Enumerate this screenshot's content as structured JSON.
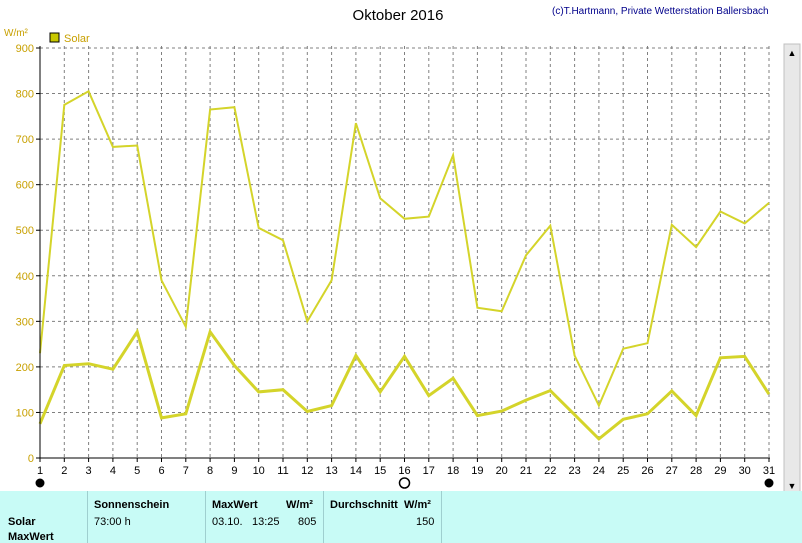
{
  "chart_data": {
    "type": "line",
    "title": "Oktober 2016",
    "credit": "(c)T.Hartmann, Private Wetterstation Ballersbach",
    "ylabel": "W/m²",
    "ylim": [
      0,
      900
    ],
    "yticks": [
      0,
      100,
      200,
      300,
      400,
      500,
      600,
      700,
      800,
      900
    ],
    "x": [
      1,
      2,
      3,
      4,
      5,
      6,
      7,
      8,
      9,
      10,
      11,
      12,
      13,
      14,
      15,
      16,
      17,
      18,
      19,
      20,
      21,
      22,
      23,
      24,
      25,
      26,
      27,
      28,
      29,
      30,
      31
    ],
    "legend": {
      "label": "Solar",
      "color": "#c8c800",
      "position": "top-left"
    },
    "grid": true,
    "series": [
      {
        "values": [
          230,
          775,
          805,
          683,
          686,
          390,
          288,
          765,
          770,
          505,
          478,
          300,
          390,
          735,
          570,
          525,
          530,
          665,
          330,
          322,
          445,
          510,
          225,
          115,
          240,
          252,
          512,
          463,
          541,
          515,
          560
        ],
        "color": "#d4d42a",
        "width": 2
      },
      {
        "values": [
          75,
          203,
          207,
          195,
          277,
          88,
          97,
          277,
          203,
          145,
          150,
          102,
          115,
          225,
          145,
          223,
          137,
          175,
          93,
          103,
          127,
          148,
          95,
          42,
          85,
          97,
          147,
          93,
          220,
          223,
          140
        ],
        "color": "#d4d42a",
        "width": 3
      }
    ],
    "marker_days": [
      {
        "day": 1,
        "style": "filled"
      },
      {
        "day": 16,
        "style": "open"
      },
      {
        "day": 31,
        "style": "filled"
      }
    ]
  },
  "footer": {
    "row_label_solar": "Solar",
    "row_label_max": "MaxWert",
    "sunshine_header": "Sonnenschein",
    "sunshine_value": "73:00 h",
    "max_header": "MaxWert",
    "max_unit": "W/m²",
    "max_date": "03.10.",
    "max_time": "13:25",
    "max_value": "805",
    "avg_header": "Durchschnitt",
    "avg_unit": "W/m²",
    "avg_value": "150"
  },
  "scrollbar_up": "▲",
  "scrollbar_down": "▼"
}
